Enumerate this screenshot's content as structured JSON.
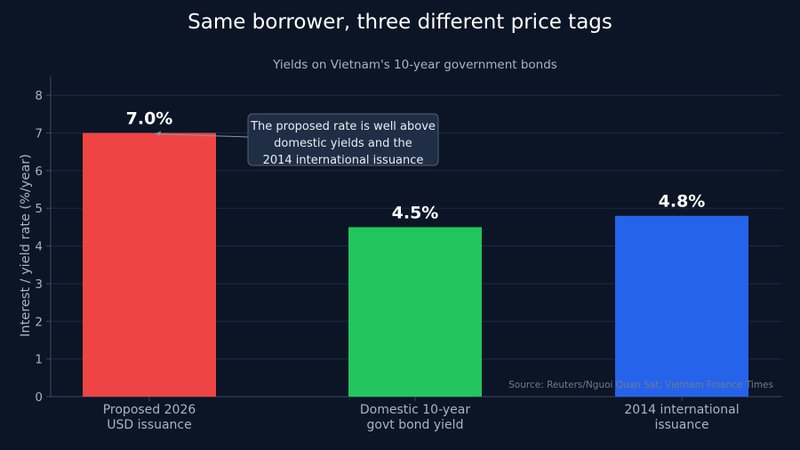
{
  "chart_data": {
    "type": "bar",
    "title": "Same borrower, three different price tags",
    "subtitle": "Yields on Vietnam's 10-year government bonds",
    "ylabel": "Interest / yield rate (%/year)",
    "xlabel": "",
    "ylim": [
      0,
      8.5
    ],
    "yticks": [
      "0",
      "1",
      "2",
      "3",
      "4",
      "5",
      "6",
      "7",
      "8"
    ],
    "categories": [
      [
        "Proposed 2026",
        "USD issuance"
      ],
      [
        "Domestic 10-year",
        "govt bond yield"
      ],
      [
        "2014 international",
        "issuance"
      ]
    ],
    "values": [
      7.0,
      4.5,
      4.8
    ],
    "data_labels": [
      "7.0%",
      "4.5%",
      "4.8%"
    ],
    "colors": [
      "#ef4444",
      "#22c55e",
      "#2563eb"
    ],
    "grid": true,
    "annotation": {
      "lines": [
        "The proposed rate is well above",
        "domestic yields and the",
        "2014 international issuance"
      ],
      "points_to_category": 0
    },
    "source": "Source: Reuters/Nguoi Quan Sat; Vietnam Finance Times"
  }
}
